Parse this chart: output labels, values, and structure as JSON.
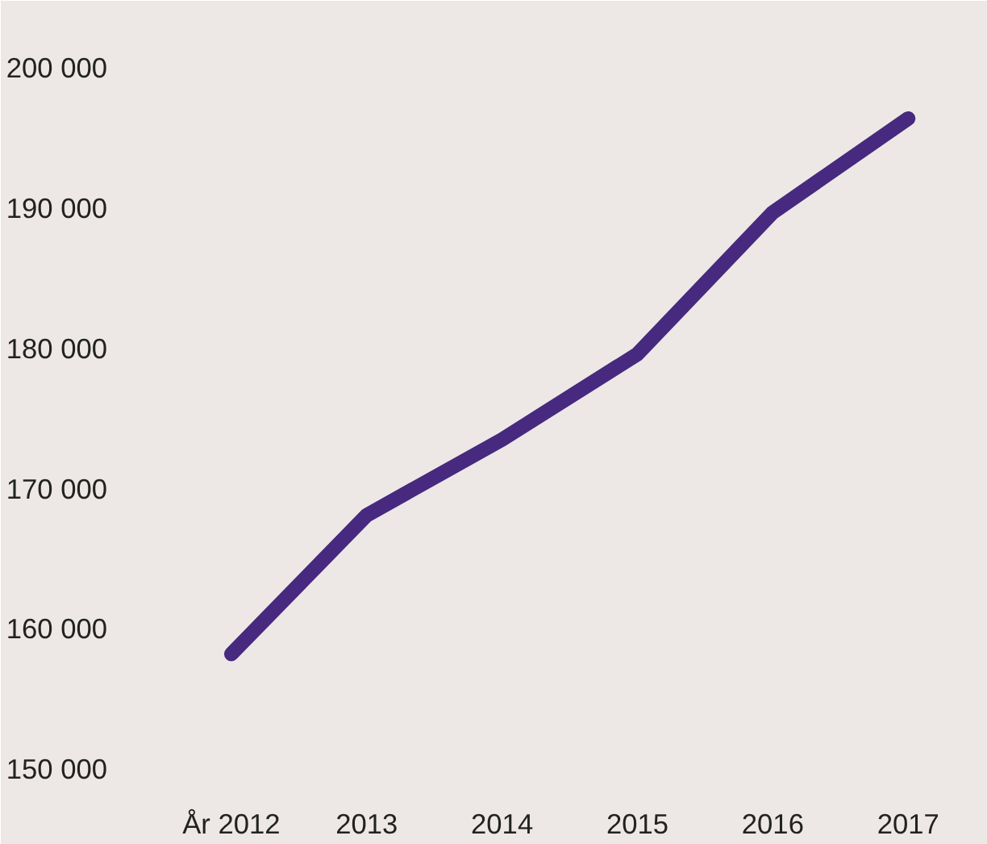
{
  "chart_data": {
    "type": "line",
    "categories": [
      "År 2012",
      "2013",
      "2014",
      "2015",
      "2016",
      "2017"
    ],
    "series": [
      {
        "color": "#47297f",
        "values": [
          158200,
          168100,
          173500,
          179600,
          189700,
          196400
        ]
      }
    ],
    "ylim": [
      148500,
      202500
    ],
    "yticks": [
      {
        "value": 150000,
        "label": "150 000"
      },
      {
        "value": 160000,
        "label": "160 000"
      },
      {
        "value": 170000,
        "label": "170 000"
      },
      {
        "value": 180000,
        "label": "180 000"
      },
      {
        "value": 190000,
        "label": "190 000"
      },
      {
        "value": 200000,
        "label": "200 000"
      }
    ],
    "grid": false,
    "marker": "none",
    "line_style": "solid"
  }
}
